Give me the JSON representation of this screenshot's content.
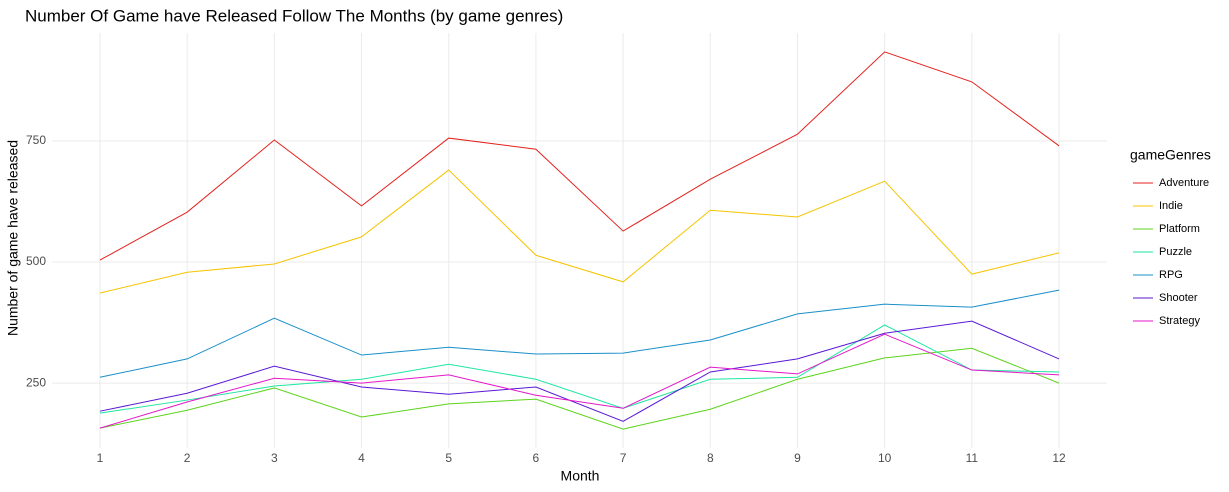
{
  "chart_data": {
    "type": "line",
    "title": "Number Of Game have Released Follow The Months (by game genres)",
    "x_label": "Month",
    "y_label": "Number of game have released",
    "legend_title": "gameGenres",
    "x": [
      1,
      2,
      3,
      4,
      5,
      6,
      7,
      8,
      9,
      10,
      11,
      12
    ],
    "xlim": [
      0.45,
      12.55
    ],
    "xticks": [
      1,
      2,
      3,
      4,
      5,
      6,
      7,
      8,
      9,
      10,
      11,
      12
    ],
    "ylim": [
      116,
      973
    ],
    "yticks": [
      250,
      500,
      750
    ],
    "grid": true,
    "legend": "right",
    "series": [
      {
        "name": "Adventure",
        "color": "#e3211c",
        "values": [
          504,
          603,
          752,
          616,
          756,
          733,
          564,
          671,
          764,
          934,
          872,
          740
        ]
      },
      {
        "name": "Indie",
        "color": "#f5c400",
        "values": [
          436,
          479,
          496,
          552,
          690,
          514,
          459,
          607,
          593,
          667,
          475,
          519
        ]
      },
      {
        "name": "Platform",
        "color": "#5cd31c",
        "values": [
          157,
          194,
          240,
          180,
          207,
          217,
          155,
          196,
          258,
          302,
          322,
          250
        ]
      },
      {
        "name": "Puzzle",
        "color": "#1ee6a0",
        "values": [
          188,
          215,
          244,
          258,
          289,
          258,
          198,
          258,
          262,
          370,
          277,
          273
        ]
      },
      {
        "name": "RPG",
        "color": "#1a8fc9",
        "values": [
          262,
          300,
          384,
          308,
          324,
          310,
          312,
          339,
          393,
          413,
          407,
          442
        ]
      },
      {
        "name": "Shooter",
        "color": "#5a17d6",
        "values": [
          192,
          229,
          285,
          242,
          227,
          242,
          171,
          273,
          300,
          353,
          378,
          300
        ]
      },
      {
        "name": "Strategy",
        "color": "#e317c9",
        "values": [
          157,
          211,
          260,
          250,
          267,
          225,
          198,
          283,
          269,
          351,
          277,
          267
        ]
      }
    ]
  }
}
